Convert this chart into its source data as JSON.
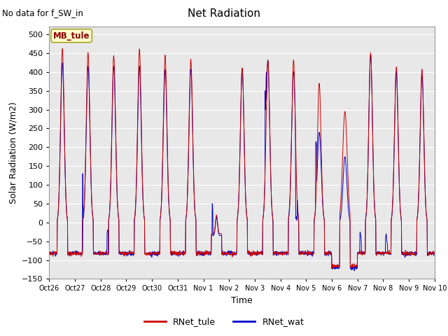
{
  "title": "Net Radiation",
  "subtitle": "No data for f_SW_in",
  "xlabel": "Time",
  "ylabel": "Solar Radiation (W/m2)",
  "ylim": [
    -150,
    520
  ],
  "yticks": [
    -150,
    -100,
    -50,
    0,
    50,
    100,
    150,
    200,
    250,
    300,
    350,
    400,
    450,
    500
  ],
  "color_tule": "#CC0000",
  "color_wat": "#0000CC",
  "bg_color": "#E8E8E8",
  "legend_label_tule": "RNet_tule",
  "legend_label_wat": "RNet_wat",
  "annotation": "MB_tule",
  "xtick_labels": [
    "Oct 26",
    "Oct 27",
    "Oct 28",
    "Oct 29",
    "Oct 30",
    "Oct 31",
    "Nov 1",
    "Nov 2",
    "Nov 3",
    "Nov 4",
    "Nov 5",
    "Nov 6",
    "Nov 7",
    "Nov 8",
    "Nov 9",
    "Nov 10"
  ],
  "n_days": 15,
  "pts_per_day": 96
}
